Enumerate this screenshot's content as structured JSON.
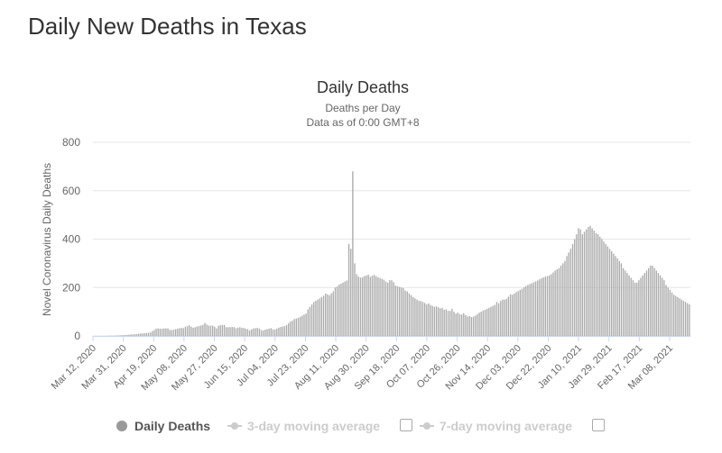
{
  "page": {
    "title": "Daily New Deaths in Texas"
  },
  "legend": {
    "daily_label": "Daily Deaths",
    "ma3_label": "3-day moving average",
    "ma7_label": "7-day moving average"
  },
  "colors": {
    "bar": "#aaaaaa",
    "grid": "#e6e6e6",
    "axis_text": "#666666",
    "legend_inactive": "#cccccc"
  },
  "chart_data": {
    "type": "bar",
    "title": "Daily Deaths",
    "subtitle_lines": [
      "Deaths per Day",
      "Data as of 0:00 GMT+8"
    ],
    "ylabel": "Novel Coronavirus Daily Deaths",
    "xlabel": "",
    "ylim": [
      0,
      800
    ],
    "yticks": [
      0,
      200,
      400,
      600,
      800
    ],
    "grid": true,
    "legend_position": "bottom",
    "x_tick_labels": [
      "Mar 12, 2020",
      "Mar 31, 2020",
      "Apr 19, 2020",
      "May 08, 2020",
      "May 27, 2020",
      "Jun 15, 2020",
      "Jul 04, 2020",
      "Jul 23, 2020",
      "Aug 11, 2020",
      "Aug 30, 2020",
      "Sep 18, 2020",
      "Oct 07, 2020",
      "Oct 26, 2020",
      "Nov 14, 2020",
      "Dec 03, 2020",
      "Dec 22, 2020",
      "Jan 10, 2021",
      "Jan 29, 2021",
      "Feb 17, 2021",
      "Mar 08, 2021"
    ],
    "x_start_date": "2020-03-12",
    "x_end_date": "2021-03-21",
    "series": [
      {
        "name": "Daily Deaths",
        "values": [
          0,
          0,
          0,
          0,
          0,
          0,
          0,
          0,
          1,
          1,
          1,
          1,
          2,
          2,
          3,
          3,
          4,
          4,
          5,
          6,
          6,
          7,
          8,
          9,
          10,
          10,
          11,
          12,
          13,
          14,
          20,
          24,
          30,
          31,
          30,
          30,
          31,
          31,
          31,
          25,
          24,
          26,
          28,
          30,
          32,
          33,
          32,
          38,
          40,
          44,
          38,
          34,
          36,
          39,
          41,
          43,
          46,
          54,
          47,
          43,
          42,
          43,
          38,
          31,
          42,
          44,
          45,
          45,
          36,
          36,
          36,
          37,
          36,
          32,
          34,
          36,
          33,
          33,
          30,
          28,
          23,
          27,
          31,
          32,
          33,
          30,
          24,
          22,
          26,
          28,
          30,
          32,
          27,
          26,
          30,
          34,
          37,
          39,
          40,
          45,
          52,
          59,
          63,
          70,
          72,
          75,
          79,
          84,
          88,
          92,
          110,
          120,
          130,
          140,
          145,
          150,
          155,
          160,
          166,
          175,
          172,
          168,
          176,
          184,
          200,
          204,
          212,
          216,
          220,
          225,
          229,
          380,
          360,
          680,
          300,
          255,
          245,
          241,
          243,
          247,
          250,
          253,
          244,
          249,
          252,
          247,
          242,
          239,
          236,
          232,
          225,
          220,
          230,
          230,
          222,
          208,
          205,
          202,
          200,
          197,
          187,
          184,
          175,
          168,
          160,
          155,
          150,
          145,
          144,
          140,
          136,
          130,
          134,
          128,
          124,
          120,
          122,
          118,
          114,
          116,
          108,
          110,
          104,
          103,
          112,
          100,
          92,
          96,
          90,
          88,
          94,
          86,
          80,
          82,
          78,
          80,
          84,
          90,
          96,
          100,
          105,
          108,
          112,
          116,
          120,
          124,
          128,
          140,
          135,
          145,
          150,
          150,
          153,
          162,
          172,
          170,
          175,
          181,
          185,
          190,
          195,
          201,
          206,
          211,
          214,
          218,
          222,
          225,
          229,
          234,
          238,
          242,
          245,
          247,
          250,
          255,
          262,
          270,
          275,
          280,
          290,
          300,
          310,
          330,
          345,
          360,
          380,
          400,
          420,
          445,
          440,
          420,
          430,
          440,
          450,
          455,
          445,
          435,
          425,
          420,
          410,
          400,
          390,
          380,
          370,
          360,
          350,
          340,
          330,
          320,
          310,
          300,
          280,
          270,
          260,
          250,
          240,
          230,
          220,
          220,
          230,
          240,
          250,
          260,
          270,
          280,
          290,
          290,
          280,
          270,
          260,
          250,
          240,
          230,
          210,
          200,
          190,
          180,
          170,
          165,
          160,
          155,
          150,
          145,
          140,
          135,
          130
        ]
      }
    ]
  }
}
